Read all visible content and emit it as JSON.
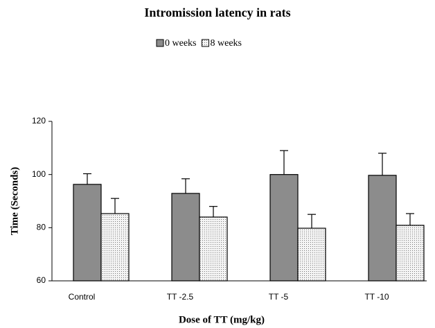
{
  "chart_data": {
    "type": "bar",
    "title": "Intromission latency in rats",
    "xlabel": "Dose of TT (mg/kg)",
    "ylabel": "Time (Seconds)",
    "categories": [
      "Control",
      "TT -2.5",
      "TT -5",
      "TT -10"
    ],
    "series": [
      {
        "name": "0 weeks",
        "color": "#8c8c8c",
        "values": [
          96.3,
          92.9,
          100,
          99.7
        ],
        "errors": [
          4,
          5.5,
          9,
          8.3
        ]
      },
      {
        "name": "8 weeks",
        "color": "#f2f2f2",
        "pattern": "dots",
        "values": [
          85.3,
          84,
          79.8,
          80.9
        ],
        "errors": [
          5.7,
          4,
          5.2,
          4.4
        ]
      }
    ],
    "ylim": [
      60,
      120
    ],
    "yticks": [
      60,
      80,
      100,
      120
    ],
    "grid": false,
    "legend": "top"
  }
}
